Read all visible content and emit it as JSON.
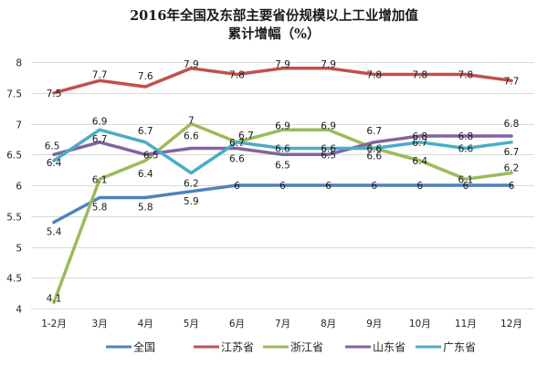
{
  "chart_data": {
    "type": "line",
    "title": "2016年全国及东部主要省份规模以上工业增加值",
    "subtitle": "累计增幅（%）",
    "xlabel": "",
    "ylabel": "",
    "categories": [
      "1-2月",
      "3月",
      "4月",
      "5月",
      "6月",
      "7月",
      "8月",
      "9月",
      "10月",
      "11月",
      "12月"
    ],
    "ylim": [
      4,
      8
    ],
    "yticks": [
      4,
      4.5,
      5,
      5.5,
      6,
      6.5,
      7,
      7.5,
      8
    ],
    "ytick_labels": [
      "4",
      "4.5",
      "5",
      "5.5",
      "6",
      "6.5",
      "7",
      "7.5",
      "8"
    ],
    "grid": true,
    "legend_position": "bottom",
    "series": [
      {
        "name": "全国",
        "color": "#4F81BD",
        "values": [
          5.4,
          5.8,
          5.8,
          5.9,
          6,
          6,
          6,
          6,
          6,
          6,
          6
        ],
        "label_offsets": [
          [
            0,
            14
          ],
          [
            0,
            14
          ],
          [
            0,
            14
          ],
          [
            0,
            14
          ],
          [
            0,
            4
          ],
          [
            0,
            4
          ],
          [
            0,
            4
          ],
          [
            0,
            4
          ],
          [
            0,
            4
          ],
          [
            0,
            4
          ],
          [
            0,
            4
          ]
        ]
      },
      {
        "name": "江苏省",
        "color": "#C0504D",
        "values": [
          7.5,
          7.7,
          7.6,
          7.9,
          7.8,
          7.9,
          7.9,
          7.8,
          7.8,
          7.8,
          7.7
        ],
        "label_offsets": [
          [
            0,
            4
          ],
          [
            0,
            -3
          ],
          [
            0,
            -8
          ],
          [
            0,
            -1
          ],
          [
            0,
            4
          ],
          [
            0,
            -1
          ],
          [
            0,
            -1
          ],
          [
            0,
            4
          ],
          [
            0,
            4
          ],
          [
            0,
            4
          ],
          [
            0,
            4
          ]
        ]
      },
      {
        "name": "浙江省",
        "color": "#9BBB59",
        "values": [
          4.1,
          6.1,
          6.4,
          7,
          6.7,
          6.9,
          6.9,
          6.6,
          6.4,
          6.1,
          6.2
        ],
        "label_offsets": [
          [
            0,
            -1
          ],
          [
            0,
            4
          ],
          [
            0,
            18
          ],
          [
            0,
            0
          ],
          [
            10,
            -4
          ],
          [
            0,
            -1
          ],
          [
            0,
            -1
          ],
          [
            0,
            12
          ],
          [
            0,
            4
          ],
          [
            0,
            4
          ],
          [
            0,
            -2
          ]
        ]
      },
      {
        "name": "山东省",
        "color": "#8064A2",
        "values": [
          6.5,
          6.7,
          6.5,
          6.6,
          6.6,
          6.5,
          6.5,
          6.7,
          6.8,
          6.8,
          6.8
        ],
        "label_offsets": [
          [
            -2,
            -6
          ],
          [
            0,
            0
          ],
          [
            6,
            4
          ],
          [
            0,
            -10
          ],
          [
            0,
            15
          ],
          [
            0,
            15
          ],
          [
            0,
            4
          ],
          [
            0,
            -9
          ],
          [
            0,
            4
          ],
          [
            0,
            4
          ],
          [
            0,
            -10
          ]
        ]
      },
      {
        "name": "广东省",
        "color": "#4BACC6",
        "values": [
          6.4,
          6.9,
          6.7,
          6.2,
          6.7,
          6.6,
          6.6,
          6.6,
          6.7,
          6.6,
          6.7
        ],
        "label_offsets": [
          [
            0,
            6
          ],
          [
            0,
            -6
          ],
          [
            0,
            -9
          ],
          [
            0,
            15
          ],
          [
            0,
            4
          ],
          [
            0,
            4
          ],
          [
            0,
            4
          ],
          [
            0,
            4
          ],
          [
            0,
            4
          ],
          [
            0,
            4
          ],
          [
            0,
            14
          ]
        ]
      }
    ]
  },
  "legend": {
    "items": [
      "全国",
      "江苏省",
      "浙江省",
      "山东省",
      "广东省"
    ]
  }
}
